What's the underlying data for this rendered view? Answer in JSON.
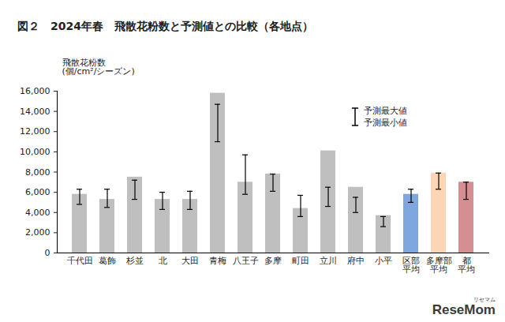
{
  "chart_data": {
    "type": "bar",
    "title": "図２　2024年春　飛散花粉数と予測値との比較（各地点）",
    "ylabel": "飛散花粉数\n(個/cm²/シーズン)",
    "categories": [
      "千代田",
      "葛飾",
      "杉並",
      "北",
      "大田",
      "青梅",
      "八王子",
      "多摩",
      "町田",
      "立川",
      "府中",
      "小平",
      "区部\n平均",
      "多摩部\n平均",
      "都\n平均"
    ],
    "values": [
      5800,
      5300,
      7500,
      5300,
      5300,
      15800,
      7000,
      7800,
      4400,
      10100,
      6500,
      3700,
      5800,
      7900,
      7000
    ],
    "forecast_max": [
      6300,
      6300,
      7200,
      6000,
      6100,
      14700,
      9700,
      7800,
      5700,
      6500,
      5500,
      3600,
      6300,
      7900,
      7000
    ],
    "forecast_min": [
      4800,
      4500,
      5300,
      4300,
      4300,
      11000,
      5800,
      6100,
      3600,
      4600,
      4000,
      2600,
      5000,
      6300,
      5300
    ],
    "forecast_labels": {
      "max": "予測最大値",
      "min": "予測最小値"
    },
    "colors": [
      "#bfbfbf",
      "#bfbfbf",
      "#bfbfbf",
      "#bfbfbf",
      "#bfbfbf",
      "#bfbfbf",
      "#bfbfbf",
      "#bfbfbf",
      "#bfbfbf",
      "#bfbfbf",
      "#bfbfbf",
      "#bfbfbf",
      "#7fa7df",
      "#fcd5b5",
      "#d48f92"
    ],
    "ylim": [
      0,
      16000
    ],
    "yticks": [
      0,
      {
        "value": 2000,
        "label": "2,000"
      },
      {
        "value": 4000,
        "label": "4,000"
      },
      {
        "value": 6000,
        "label": "6,000"
      },
      {
        "value": 8000,
        "label": "8,000"
      },
      {
        "value": 10000,
        "label": "10,000"
      },
      {
        "value": 12000,
        "label": "12,000"
      },
      {
        "value": 14000,
        "label": "14,000"
      },
      {
        "value": 16000,
        "label": "16,000"
      }
    ],
    "grid": false,
    "watermark": "ReseMom",
    "watermark_sub": "リセマム"
  }
}
